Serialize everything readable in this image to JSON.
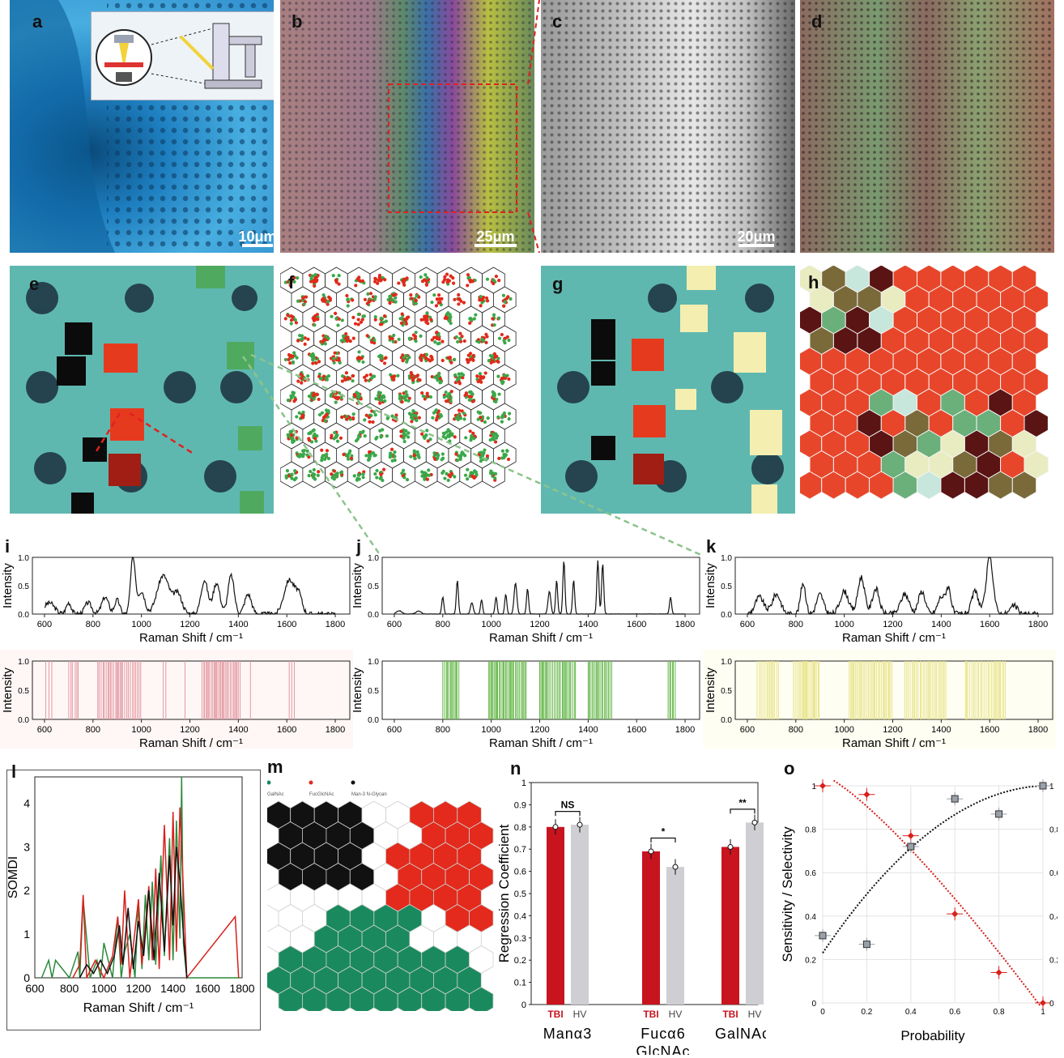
{
  "panels": {
    "a": {
      "label": "a",
      "scale": "10μm"
    },
    "b": {
      "label": "b",
      "scale": "25μm"
    },
    "c": {
      "label": "c",
      "scale": "20μm"
    },
    "d": {
      "label": "d"
    },
    "e": {
      "label": "e"
    },
    "f": {
      "label": "f"
    },
    "g": {
      "label": "g"
    },
    "h": {
      "label": "h"
    },
    "i": {
      "label": "i"
    },
    "j": {
      "label": "j"
    },
    "k": {
      "label": "k"
    },
    "l": {
      "label": "l"
    },
    "m": {
      "label": "m"
    },
    "n": {
      "label": "n"
    },
    "o": {
      "label": "o"
    }
  },
  "colors": {
    "tbi_red": "#c8141e",
    "hv_grey": "#cfcfd3",
    "galnac_green": "#1a8a5e",
    "fuc_red": "#e32a1c",
    "man_black": "#111111",
    "spectrum_i": "#e39aa3",
    "spectrum_j": "#66b84a",
    "spectrum_k": "#e8e48a"
  },
  "spectra_axis": {
    "xlabel": "Raman Shift / cm⁻¹",
    "ylabel": "Intensity",
    "xticks": [
      "600",
      "800",
      "1000",
      "1200",
      "1400",
      "1600",
      "1800"
    ],
    "yticks": [
      "0.0",
      "0.5",
      "1.0"
    ]
  },
  "m_legend": [
    "GalNAc",
    "FucGlcNAc",
    "Man-3 N-Glycan"
  ],
  "chart_data": [
    {
      "type": "line",
      "panel": "l",
      "xlabel": "Raman Shift / cm⁻¹",
      "ylabel": "SOMDI",
      "xlim": [
        600,
        1800
      ],
      "ylim": [
        0,
        4.6
      ],
      "xticks": [
        "600",
        "800",
        "1000",
        "1200",
        "1400",
        "1600",
        "1800"
      ],
      "yticks": [
        "0",
        "1",
        "2",
        "3",
        "4"
      ],
      "series": [
        {
          "color": "#2a8a3a",
          "x": [
            640,
            680,
            700,
            720,
            800,
            850,
            860,
            880,
            920,
            960,
            980,
            1000,
            1050,
            1080,
            1100,
            1120,
            1150,
            1180,
            1200,
            1220,
            1240,
            1260,
            1280,
            1300,
            1330,
            1350,
            1380,
            1400,
            1420,
            1440,
            1450,
            1460,
            1480,
            1760,
            1790
          ],
          "y": [
            0,
            0.4,
            0,
            0.4,
            0,
            0.6,
            0,
            1.8,
            0,
            0.4,
            0,
            0.8,
            0,
            1.4,
            0,
            0.6,
            1.0,
            0,
            1.7,
            0.2,
            1.9,
            0.4,
            2.2,
            0.3,
            2.8,
            0.5,
            3.2,
            0.4,
            3.6,
            0.9,
            4.6,
            0.8,
            0,
            0,
            0
          ]
        },
        {
          "color": "#d8201c",
          "x": [
            820,
            860,
            880,
            900,
            950,
            1000,
            1050,
            1080,
            1100,
            1120,
            1150,
            1200,
            1220,
            1260,
            1280,
            1300,
            1320,
            1350,
            1380,
            1400,
            1420,
            1440,
            1460,
            1480,
            1760,
            1780
          ],
          "y": [
            0,
            0.3,
            1.9,
            0,
            0.4,
            0,
            0.5,
            1.4,
            0.3,
            2.0,
            0,
            1.8,
            0.3,
            2.1,
            0.4,
            2.5,
            0.2,
            3.5,
            0.4,
            3.8,
            0.6,
            3.9,
            2.0,
            0,
            1.4,
            0
          ]
        },
        {
          "color": "#111111",
          "x": [
            860,
            900,
            940,
            980,
            1020,
            1060,
            1090,
            1110,
            1140,
            1170,
            1200,
            1230,
            1260,
            1290,
            1320,
            1350,
            1380,
            1400,
            1420,
            1440,
            1460,
            1480
          ],
          "y": [
            0,
            0.3,
            0.1,
            0.4,
            0.1,
            0.5,
            1.2,
            0.3,
            1.6,
            0.2,
            1.3,
            0.5,
            2.0,
            0.4,
            2.4,
            0.6,
            2.8,
            1.2,
            3.0,
            2.2,
            1.0,
            0
          ]
        }
      ]
    },
    {
      "type": "bar",
      "panel": "n",
      "ylabel": "Regression Coefficient",
      "ylim": [
        0,
        1
      ],
      "yticks": [
        "0",
        "0.1",
        "0.2",
        "0.3",
        "0.4",
        "0.5",
        "0.6",
        "0.7",
        "0.8",
        "0.9",
        "1"
      ],
      "categories": [
        "Manα3",
        "Fucα6 GlcNAc",
        "GalNAc"
      ],
      "category_lines": [
        [
          "Manα3"
        ],
        [
          "Fucα6",
          "GlcNAc"
        ],
        [
          "GalNAc"
        ]
      ],
      "group_labels": [
        "TBI",
        "HV"
      ],
      "series": [
        {
          "name": "TBI",
          "values": [
            0.8,
            0.69,
            0.71
          ]
        },
        {
          "name": "HV",
          "values": [
            0.81,
            0.62,
            0.82
          ]
        }
      ],
      "significance": [
        "NS",
        "*",
        "**"
      ]
    },
    {
      "type": "scatter",
      "panel": "o",
      "xlabel": "Probability",
      "ylabel": "Sensitivity / Selectivity",
      "xlim": [
        0,
        1
      ],
      "ylim": [
        0,
        1
      ],
      "xticks": [
        "0",
        "0.2",
        "0.4",
        "0.6",
        "0.8",
        "1"
      ],
      "yticks": [
        "0",
        "0.2",
        "0.4",
        "0.6",
        "0.8",
        "1"
      ],
      "grid": true,
      "series": [
        {
          "marker": "diamond",
          "color": "#d8201c",
          "x": [
            0,
            0.2,
            0.4,
            0.6,
            0.8,
            1.0
          ],
          "y": [
            1.0,
            0.96,
            0.77,
            0.41,
            0.14,
            0.0
          ]
        },
        {
          "marker": "square",
          "color": "#9aa0aa",
          "x": [
            0,
            0.2,
            0.4,
            0.6,
            0.8,
            1.0
          ],
          "y": [
            0.31,
            0.27,
            0.72,
            0.94,
            0.87,
            1.0
          ]
        }
      ]
    }
  ]
}
